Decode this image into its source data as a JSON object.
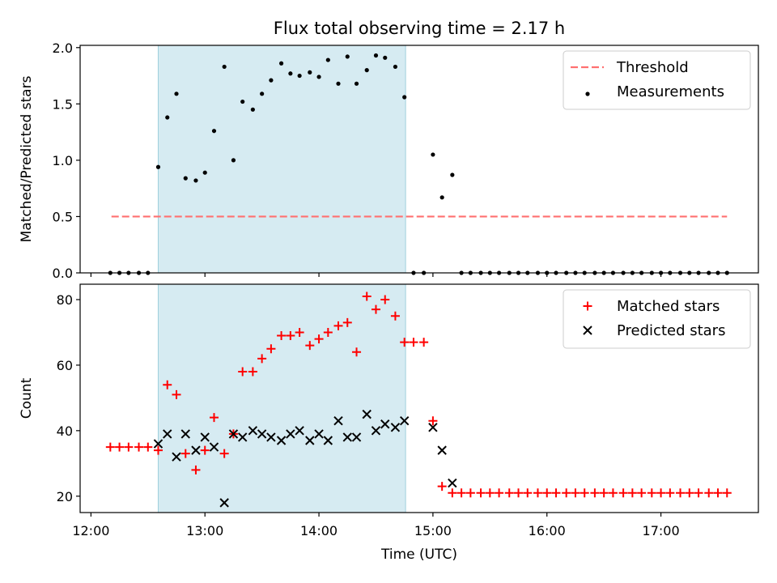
{
  "chart_data": [
    {
      "type": "scatter",
      "title": "Flux total observing time = 2.17 h",
      "xlabel": "",
      "ylabel": "Matched/Predicted stars",
      "xlim": [
        11.905,
        17.855
      ],
      "ylim": [
        0.0,
        2.02
      ],
      "yticks": [
        0.0,
        0.5,
        1.0,
        1.5,
        2.0
      ],
      "ytick_labels": [
        "0.0",
        "0.5",
        "1.0",
        "1.5",
        "2.0"
      ],
      "shaded_interval": [
        12.59,
        14.76
      ],
      "threshold": {
        "name": "Threshold",
        "value": 0.5,
        "x_start": 12.18,
        "x_end": 17.58,
        "color": "#ff7070",
        "style": "dashed"
      },
      "legend_position": "top-right",
      "series": [
        {
          "name": "Measurements",
          "marker": "dot",
          "color": "#000000",
          "x": [
            12.17,
            12.25,
            12.33,
            12.42,
            12.5,
            12.59,
            12.67,
            12.75,
            12.83,
            12.92,
            13.0,
            13.08,
            13.17,
            13.25,
            13.33,
            13.42,
            13.5,
            13.58,
            13.67,
            13.75,
            13.83,
            13.92,
            14.0,
            14.08,
            14.17,
            14.25,
            14.33,
            14.42,
            14.5,
            14.58,
            14.67,
            14.75,
            14.83,
            14.92,
            15.0,
            15.08,
            15.17,
            15.25,
            15.33,
            15.42,
            15.5,
            15.58,
            15.67,
            15.75,
            15.83,
            15.92,
            16.0,
            16.08,
            16.17,
            16.25,
            16.33,
            16.42,
            16.5,
            16.58,
            16.67,
            16.75,
            16.83,
            16.92,
            17.0,
            17.08,
            17.17,
            17.25,
            17.33,
            17.42,
            17.5,
            17.58
          ],
          "y": [
            0,
            0,
            0,
            0,
            0,
            0.94,
            1.38,
            1.59,
            0.84,
            0.82,
            0.89,
            1.26,
            1.83,
            1.0,
            1.52,
            1.45,
            1.59,
            1.71,
            1.86,
            1.77,
            1.75,
            1.78,
            1.74,
            1.89,
            1.68,
            1.92,
            1.68,
            1.8,
            1.93,
            1.91,
            1.83,
            1.56,
            0,
            0,
            1.05,
            0.67,
            0.87,
            0,
            0,
            0,
            0,
            0,
            0,
            0,
            0,
            0,
            0,
            0,
            0,
            0,
            0,
            0,
            0,
            0,
            0,
            0,
            0,
            0,
            0,
            0,
            0,
            0,
            0,
            0,
            0,
            0
          ]
        }
      ]
    },
    {
      "type": "scatter",
      "title": "",
      "xlabel": "Time (UTC)",
      "ylabel": "Count",
      "xlim": [
        11.905,
        17.855
      ],
      "ylim": [
        15.0,
        84.7
      ],
      "yticks": [
        20,
        40,
        60,
        80
      ],
      "ytick_labels": [
        "20",
        "40",
        "60",
        "80"
      ],
      "xticks": [
        12,
        13,
        14,
        15,
        16,
        17
      ],
      "xtick_labels": [
        "12:00",
        "13:00",
        "14:00",
        "15:00",
        "16:00",
        "17:00"
      ],
      "shaded_interval": [
        12.59,
        14.76
      ],
      "legend_position": "top-right",
      "series": [
        {
          "name": "Matched stars",
          "marker": "plus",
          "color": "#ff0000",
          "x": [
            12.17,
            12.25,
            12.33,
            12.42,
            12.5,
            12.59,
            12.67,
            12.75,
            12.83,
            12.92,
            13.0,
            13.08,
            13.17,
            13.25,
            13.33,
            13.42,
            13.5,
            13.58,
            13.67,
            13.75,
            13.83,
            13.92,
            14.0,
            14.08,
            14.17,
            14.25,
            14.33,
            14.42,
            14.5,
            14.58,
            14.67,
            14.75,
            14.83,
            14.92,
            15.0,
            15.08,
            15.17,
            15.25,
            15.33,
            15.42,
            15.5,
            15.58,
            15.67,
            15.75,
            15.83,
            15.92,
            16.0,
            16.08,
            16.17,
            16.25,
            16.33,
            16.42,
            16.5,
            16.58,
            16.67,
            16.75,
            16.83,
            16.92,
            17.0,
            17.08,
            17.17,
            17.25,
            17.33,
            17.42,
            17.5,
            17.58
          ],
          "y": [
            35,
            35,
            35,
            35,
            35,
            34,
            54,
            51,
            33,
            28,
            34,
            44,
            33,
            39,
            58,
            58,
            62,
            65,
            69,
            69,
            70,
            66,
            68,
            70,
            72,
            73,
            64,
            81,
            77,
            80,
            75,
            67,
            67,
            67,
            43,
            23,
            21,
            21,
            21,
            21,
            21,
            21,
            21,
            21,
            21,
            21,
            21,
            21,
            21,
            21,
            21,
            21,
            21,
            21,
            21,
            21,
            21,
            21,
            21,
            21,
            21,
            21,
            21,
            21,
            21,
            21
          ]
        },
        {
          "name": "Predicted stars",
          "marker": "x",
          "color": "#000000",
          "x": [
            12.59,
            12.67,
            12.75,
            12.83,
            12.92,
            13.0,
            13.08,
            13.17,
            13.25,
            13.33,
            13.42,
            13.5,
            13.58,
            13.67,
            13.75,
            13.83,
            13.92,
            14.0,
            14.08,
            14.17,
            14.25,
            14.33,
            14.42,
            14.5,
            14.58,
            14.67,
            14.75,
            15.0,
            15.08,
            15.17
          ],
          "y": [
            36,
            39,
            32,
            39,
            34,
            38,
            35,
            18,
            39,
            38,
            40,
            39,
            38,
            37,
            39,
            40,
            37,
            39,
            37,
            43,
            38,
            38,
            45,
            40,
            42,
            41,
            43,
            41,
            34,
            24
          ]
        }
      ]
    }
  ]
}
